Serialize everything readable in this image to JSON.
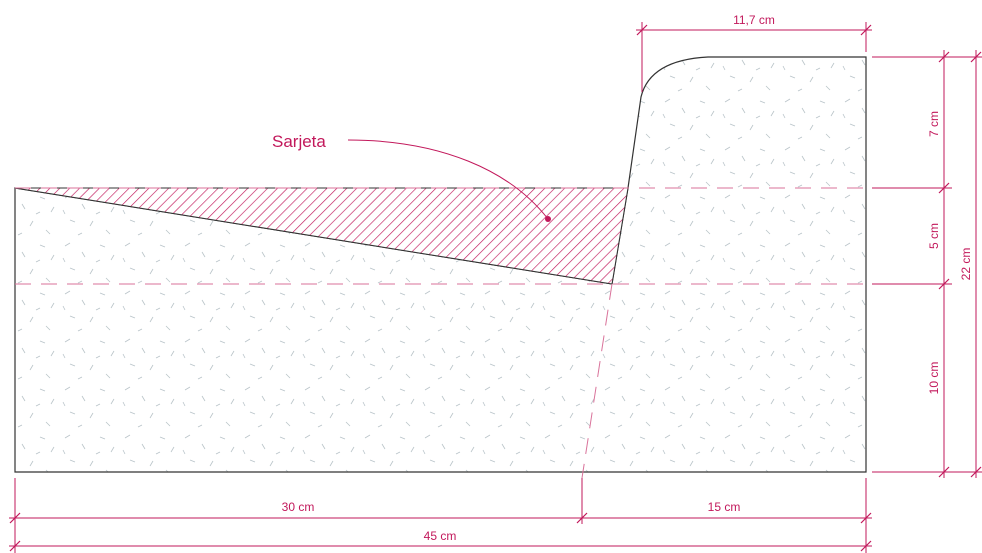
{
  "callout": {
    "label": "Sarjeta"
  },
  "dimensions": {
    "top_width": "11,7 cm",
    "height_upper": "7 cm",
    "height_middle": "5 cm",
    "height_lower": "10 cm",
    "height_total": "22 cm",
    "width_left": "30 cm",
    "width_right": "15 cm",
    "width_total": "45 cm"
  },
  "colors": {
    "annotation": "#c2185b",
    "guide": "#d9729a",
    "outline": "#333333",
    "concrete_speckle": "#b9c4c9"
  }
}
